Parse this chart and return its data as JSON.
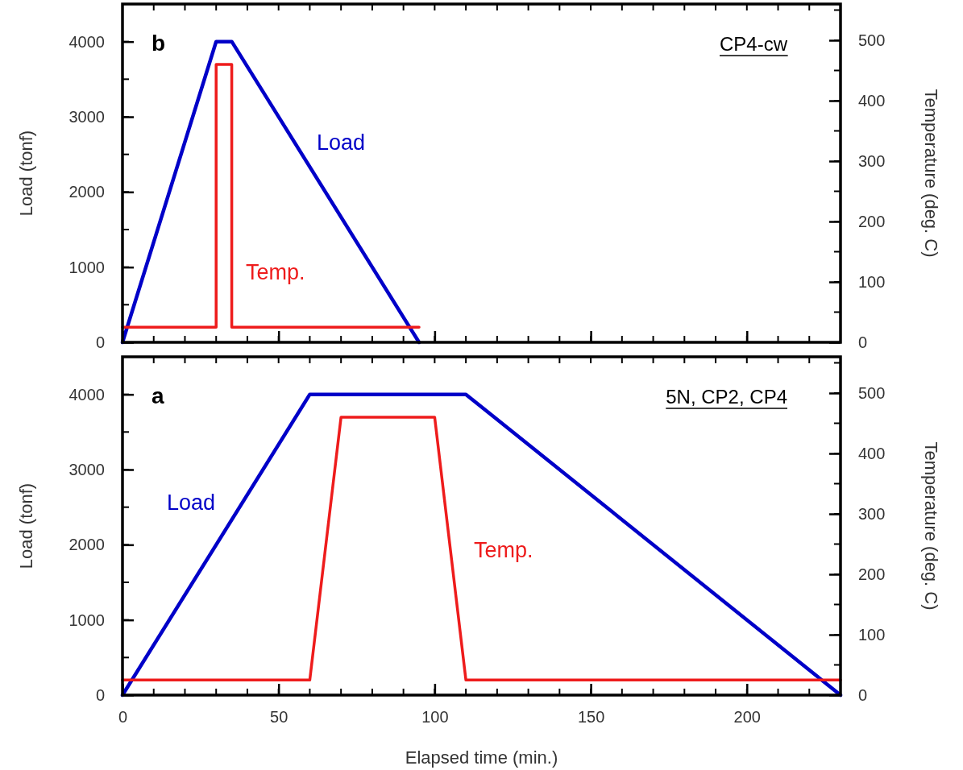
{
  "chart_data": [
    {
      "type": "line",
      "ylabel": "Load (tonf)",
      "y2label": "Temperature (deg. C)",
      "xlim": [
        0,
        230
      ],
      "xticks": [
        0,
        50,
        100,
        150,
        200
      ],
      "ylim": [
        0,
        4500
      ],
      "yticks": [
        0,
        1000,
        2000,
        3000,
        4000
      ],
      "y2lim": [
        0,
        560
      ],
      "y2ticks": [
        0,
        100,
        200,
        300,
        400,
        500
      ],
      "tick_labels": "y",
      "grid": false,
      "marker": "none",
      "line_style": "solid",
      "series": [
        {
          "name": "Load",
          "color": "#0000c8",
          "x": [
            0,
            30,
            35,
            95
          ],
          "values": [
            0,
            4000,
            4000,
            0
          ]
        },
        {
          "name": "Temp.",
          "color": "#ee1c1c",
          "axis": "y2",
          "x": [
            0,
            30,
            30,
            35,
            35,
            95
          ],
          "values": [
            25,
            25,
            460,
            460,
            25,
            25
          ]
        }
      ],
      "annotations": [
        "b",
        "CP4-cw"
      ]
    },
    {
      "type": "line",
      "xlabel": "Elapsed time (min.)",
      "ylabel": "Load (tonf)",
      "y2label": "Temperature (deg. C)",
      "xlim": [
        0,
        230
      ],
      "xticks": [
        0,
        50,
        100,
        150,
        200
      ],
      "ylim": [
        0,
        4500
      ],
      "yticks": [
        0,
        1000,
        2000,
        3000,
        4000
      ],
      "y2lim": [
        0,
        560
      ],
      "y2ticks": [
        0,
        100,
        200,
        300,
        400,
        500
      ],
      "grid": false,
      "marker": "none",
      "line_style": "solid",
      "series": [
        {
          "name": "Load",
          "color": "#0000c8",
          "x": [
            0,
            60,
            110,
            230
          ],
          "values": [
            0,
            4000,
            4000,
            0
          ]
        },
        {
          "name": "Temp.",
          "color": "#ee1c1c",
          "axis": "y2",
          "x": [
            0,
            60,
            70,
            100,
            110,
            230
          ],
          "values": [
            25,
            25,
            460,
            460,
            25,
            25
          ]
        }
      ],
      "annotations": [
        "a",
        "5N, CP2, CP4"
      ]
    }
  ]
}
